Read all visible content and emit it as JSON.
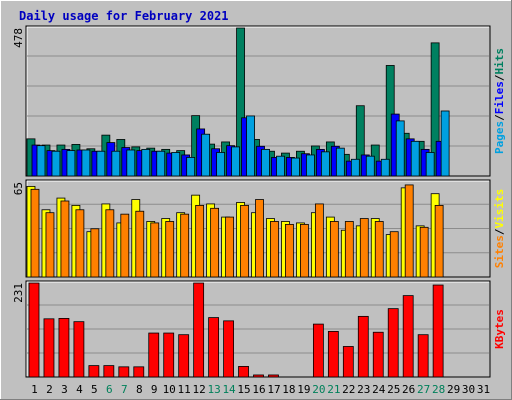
{
  "chart_data": {
    "type": "bar",
    "title": "Daily usage for February 2021",
    "x_labels": [
      "1",
      "2",
      "3",
      "4",
      "5",
      "6",
      "7",
      "8",
      "9",
      "10",
      "11",
      "12",
      "13",
      "14",
      "15",
      "16",
      "17",
      "18",
      "19",
      "20",
      "21",
      "22",
      "23",
      "24",
      "25",
      "26",
      "27",
      "28",
      "29",
      "30",
      "31"
    ],
    "weekend_days": [
      6,
      7,
      13,
      14,
      20,
      21,
      27,
      28
    ],
    "panels": [
      {
        "id": "hits",
        "ymax": 478,
        "ymax_label": "478",
        "legend": [
          "Pages",
          "/",
          "Files",
          "/",
          "Hits"
        ],
        "legend_colors": [
          "#00a0e0",
          "#000000",
          "#0000ff",
          "#000000",
          "#008060"
        ],
        "series": [
          {
            "name": "Hits",
            "color": "#008060",
            "values": [
              120,
              100,
              100,
              102,
              88,
              132,
              118,
              94,
              90,
              86,
              82,
              195,
              103,
              110,
              478,
              118,
              80,
              74,
              80,
              97,
              110,
              70,
              227,
              100,
              357,
              138,
              112,
              430
            ]
          },
          {
            "name": "Files",
            "color": "#0000ff",
            "values": [
              100,
              82,
              86,
              84,
              80,
              108,
              92,
              82,
              80,
              74,
              68,
              152,
              88,
              98,
              188,
              96,
              60,
              60,
              72,
              86,
              96,
              48,
              68,
              48,
              200,
              120,
              86,
              112
            ]
          },
          {
            "name": "Pages",
            "color": "#00a0e0",
            "values": [
              98,
              80,
              82,
              84,
              80,
              80,
              84,
              86,
              80,
              76,
              60,
              135,
              76,
              94,
              194,
              86,
              64,
              58,
              68,
              78,
              90,
              54,
              64,
              54,
              178,
              112,
              76,
              210
            ]
          }
        ]
      },
      {
        "id": "visits",
        "ymax": 65,
        "ymax_label": "65",
        "legend": [
          "Sites",
          "/",
          "Visits"
        ],
        "legend_colors": [
          "#ff8000",
          "#000000",
          "#ffff00"
        ],
        "series": [
          {
            "name": "Visits",
            "color": "#ffff00",
            "values": [
              62,
              46,
              54,
              49,
              31,
              50,
              37,
              53,
              38,
              40,
              44,
              56,
              50,
              41,
              51,
              44,
              40,
              38,
              37,
              44,
              41,
              32,
              35,
              40,
              29,
              61,
              35,
              57
            ]
          },
          {
            "name": "Sites",
            "color": "#ff8000",
            "values": [
              60,
              44,
              52,
              46,
              33,
              46,
              43,
              45,
              37,
              38,
              43,
              49,
              47,
              41,
              49,
              53,
              38,
              36,
              36,
              50,
              38,
              38,
              40,
              38,
              31,
              63,
              34,
              49
            ]
          }
        ]
      },
      {
        "id": "kbytes",
        "ymax": 231,
        "ymax_label": "231",
        "legend": [
          "KBytes"
        ],
        "legend_colors": [
          "#ff0000"
        ],
        "series": [
          {
            "name": "KBytes",
            "color": "#ff0000",
            "values": [
              231,
              143,
              144,
              136,
              28,
              28,
              25,
              25,
              108,
              108,
              104,
              231,
              146,
              138,
              26,
              5,
              5,
              0,
              0,
              130,
              112,
              75,
              149,
              110,
              168,
              200,
              104,
              226
            ]
          }
        ]
      }
    ]
  }
}
